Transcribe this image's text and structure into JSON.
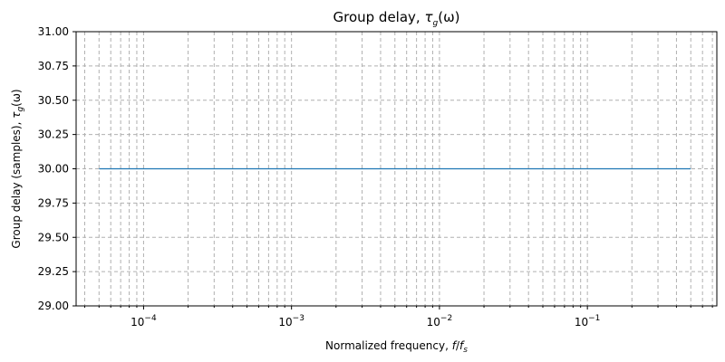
{
  "chart_data": {
    "type": "line",
    "title_prefix": "Group delay, ",
    "title_math": {
      "sym": "τ",
      "sub": "g",
      "arg": "(ω)"
    },
    "xlabel_prefix": "Normalized frequency, ",
    "xlabel_math": {
      "num": "f",
      "den": "f",
      "den_sub": "s"
    },
    "ylabel_prefix": "Group delay (samples), ",
    "ylabel_math": {
      "sym": "τ",
      "sub": "g",
      "arg": "(ω)"
    },
    "x_scale": "log",
    "xlim": [
      3.5e-05,
      0.75
    ],
    "ylim": [
      29.0,
      31.0
    ],
    "x_tick_labels": [
      {
        "value": 0.0001,
        "base": "10",
        "exp": "−4"
      },
      {
        "value": 0.001,
        "base": "10",
        "exp": "−3"
      },
      {
        "value": 0.01,
        "base": "10",
        "exp": "−2"
      },
      {
        "value": 0.1,
        "base": "10",
        "exp": "−1"
      }
    ],
    "y_ticks": [
      29.0,
      29.25,
      29.5,
      29.75,
      30.0,
      30.25,
      30.5,
      30.75,
      31.0
    ],
    "y_tick_labels": [
      "29.00",
      "29.25",
      "29.50",
      "29.75",
      "30.00",
      "30.25",
      "30.50",
      "30.75",
      "31.00"
    ],
    "grid": true,
    "grid_style": "dashed",
    "series": [
      {
        "color": "#1f77b4",
        "x": [
          5e-05,
          0.0001,
          0.001,
          0.01,
          0.1,
          0.5
        ],
        "y": [
          30.0,
          30.0,
          30.0,
          30.0,
          30.0,
          30.0
        ]
      }
    ]
  },
  "colors": {
    "grid": "#b0b0b0",
    "axis": "#000000",
    "line": "#1f77b4"
  }
}
